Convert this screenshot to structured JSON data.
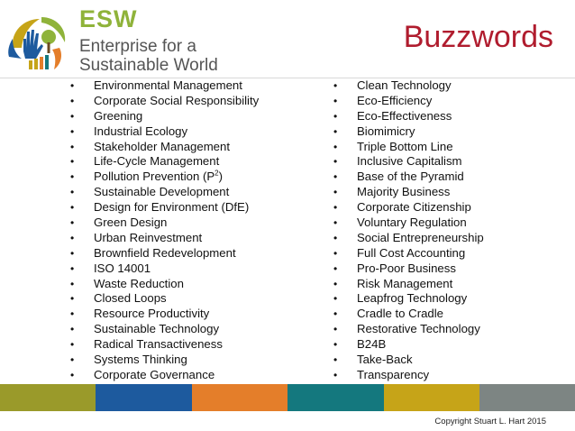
{
  "header": {
    "acronym": "ESW",
    "org_line1": "Enterprise for a",
    "org_line2": "Sustainable World",
    "title": "Buzzwords"
  },
  "colors": {
    "title": "#b01c2e",
    "acronym": "#8fb33a",
    "band": [
      "#9a9a2a",
      "#1d5a9e",
      "#e47e2a",
      "#14787e",
      "#c6a418",
      "#7d8583"
    ]
  },
  "icons": {
    "logo": "esw-logo-icon"
  },
  "left_column": [
    "Environmental Management",
    "Corporate Social Responsibility",
    "Greening",
    "Industrial Ecology",
    "Stakeholder Management",
    "Life-Cycle Management",
    "Pollution Prevention (P",
    "Sustainable Development",
    "Design for Environment (DfE)",
    "Green Design",
    "Urban Reinvestment",
    "Brownfield Redevelopment",
    "ISO 14001",
    "Waste Reduction",
    "Closed Loops",
    "Resource Productivity",
    "Sustainable Technology",
    "Radical Transactiveness",
    "Systems Thinking",
    "Corporate Governance"
  ],
  "pollution_suffix": {
    "sup": "2",
    "close": ")"
  },
  "right_column": [
    "Clean Technology",
    "Eco-Efficiency",
    "Eco-Effectiveness",
    "Biomimicry",
    "Triple Bottom Line",
    "Inclusive Capitalism",
    "Base of the Pyramid",
    "Majority Business",
    "Corporate Citizenship",
    "Voluntary Regulation",
    "Social Entrepreneurship",
    "Full Cost Accounting",
    "Pro-Poor Business",
    "Risk Management",
    "Leapfrog Technology",
    "Cradle to Cradle",
    "Restorative Technology",
    "B24B",
    "Take-Back",
    "Transparency"
  ],
  "bullet": "•",
  "footer": {
    "copyright": "Copyright Stuart L. Hart 2015"
  }
}
